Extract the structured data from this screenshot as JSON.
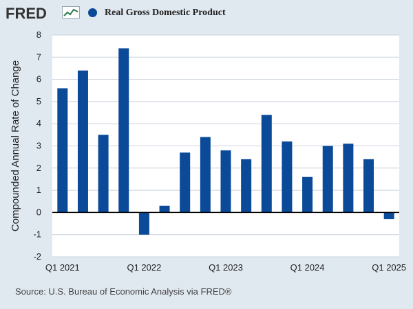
{
  "header": {
    "logo_text": "FRED",
    "logo_icon": "line-graph-icon"
  },
  "chart_data": {
    "type": "bar",
    "title": "",
    "ylabel": "Compounded Annual Rate of Change",
    "xlabel": "",
    "ylim": [
      -2,
      8
    ],
    "yticks": [
      -2,
      -1,
      0,
      1,
      2,
      3,
      4,
      5,
      6,
      7,
      8
    ],
    "grid": true,
    "legend_position": "top-left",
    "categories": [
      "Q1 2021",
      "Q2 2021",
      "Q3 2021",
      "Q4 2021",
      "Q1 2022",
      "Q2 2022",
      "Q3 2022",
      "Q4 2022",
      "Q1 2023",
      "Q2 2023",
      "Q3 2023",
      "Q4 2023",
      "Q1 2024",
      "Q2 2024",
      "Q3 2024",
      "Q4 2024",
      "Q1 2025"
    ],
    "x_tick_labels": [
      "Q1 2021",
      "Q1 2022",
      "Q1 2023",
      "Q1 2024",
      "Q1 2025"
    ],
    "series": [
      {
        "name": "Real Gross Domestic Product",
        "color": "#0b4a99",
        "values": [
          5.6,
          6.4,
          3.5,
          7.4,
          -1.0,
          0.3,
          2.7,
          3.4,
          2.8,
          2.4,
          4.4,
          3.2,
          1.6,
          3.0,
          3.1,
          2.4,
          -0.3
        ]
      }
    ]
  },
  "source": "Source: U.S. Bureau of Economic Analysis via FRED®",
  "colors": {
    "background": "#e1e9f0",
    "plot_background": "#ffffff",
    "bar": "#0b4a99",
    "grid": "#c9d2dc"
  }
}
